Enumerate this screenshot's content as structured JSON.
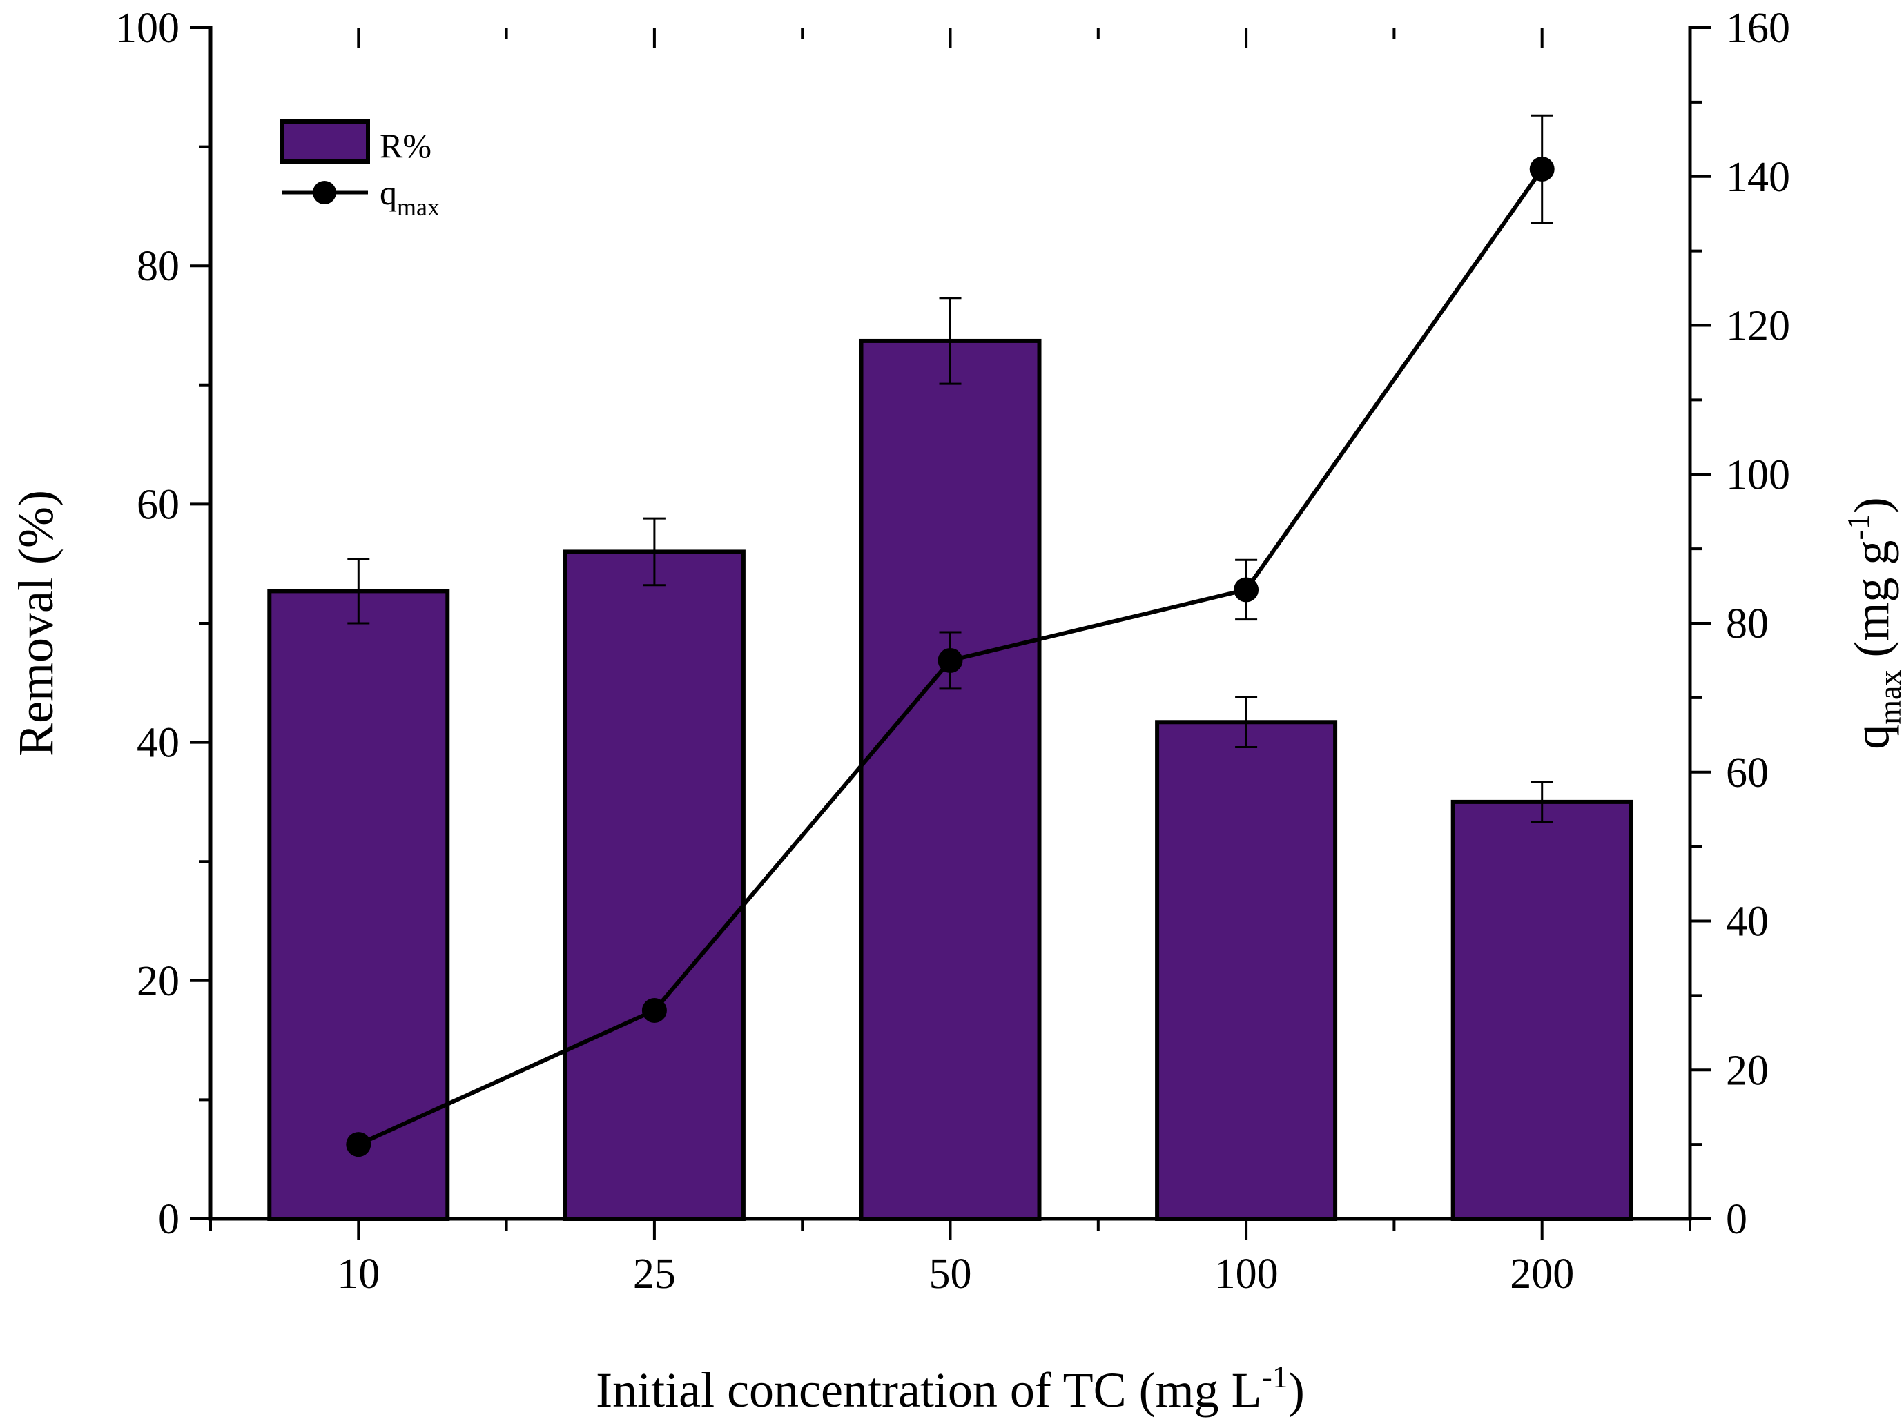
{
  "chart_data": {
    "type": "bar",
    "categories": [
      "10",
      "25",
      "50",
      "100",
      "200"
    ],
    "series": [
      {
        "name": "R%",
        "kind": "bar",
        "axis": "left",
        "values": [
          52.7,
          56.0,
          73.7,
          41.7,
          35.0
        ],
        "errors": [
          2.7,
          2.8,
          3.6,
          2.1,
          1.7
        ],
        "color": "#501878"
      },
      {
        "name": "qmax",
        "name_base": "q",
        "name_sub": "max",
        "kind": "line",
        "axis": "right",
        "values": [
          10.0,
          28.0,
          75.0,
          84.5,
          141.0
        ],
        "errors": [
          0,
          0,
          3.8,
          4.0,
          7.2
        ],
        "color": "#000000"
      }
    ],
    "xlabel": {
      "main": "Initial concentration of TC (mg L",
      "sup": "-1",
      "close": ")"
    },
    "ylabel_left": "Removal (%)",
    "ylabel_right": {
      "base": "q",
      "sub": "max",
      "mid": " (mg g",
      "sup": "-1",
      "close": ")"
    },
    "ylim_left": [
      0,
      100
    ],
    "yticks_left": [
      0,
      20,
      40,
      60,
      80,
      100
    ],
    "ylim_right": [
      0,
      160
    ],
    "yticks_right": [
      0,
      20,
      40,
      60,
      80,
      100,
      120,
      140,
      160
    ],
    "legend": {
      "position": "top-left"
    }
  }
}
